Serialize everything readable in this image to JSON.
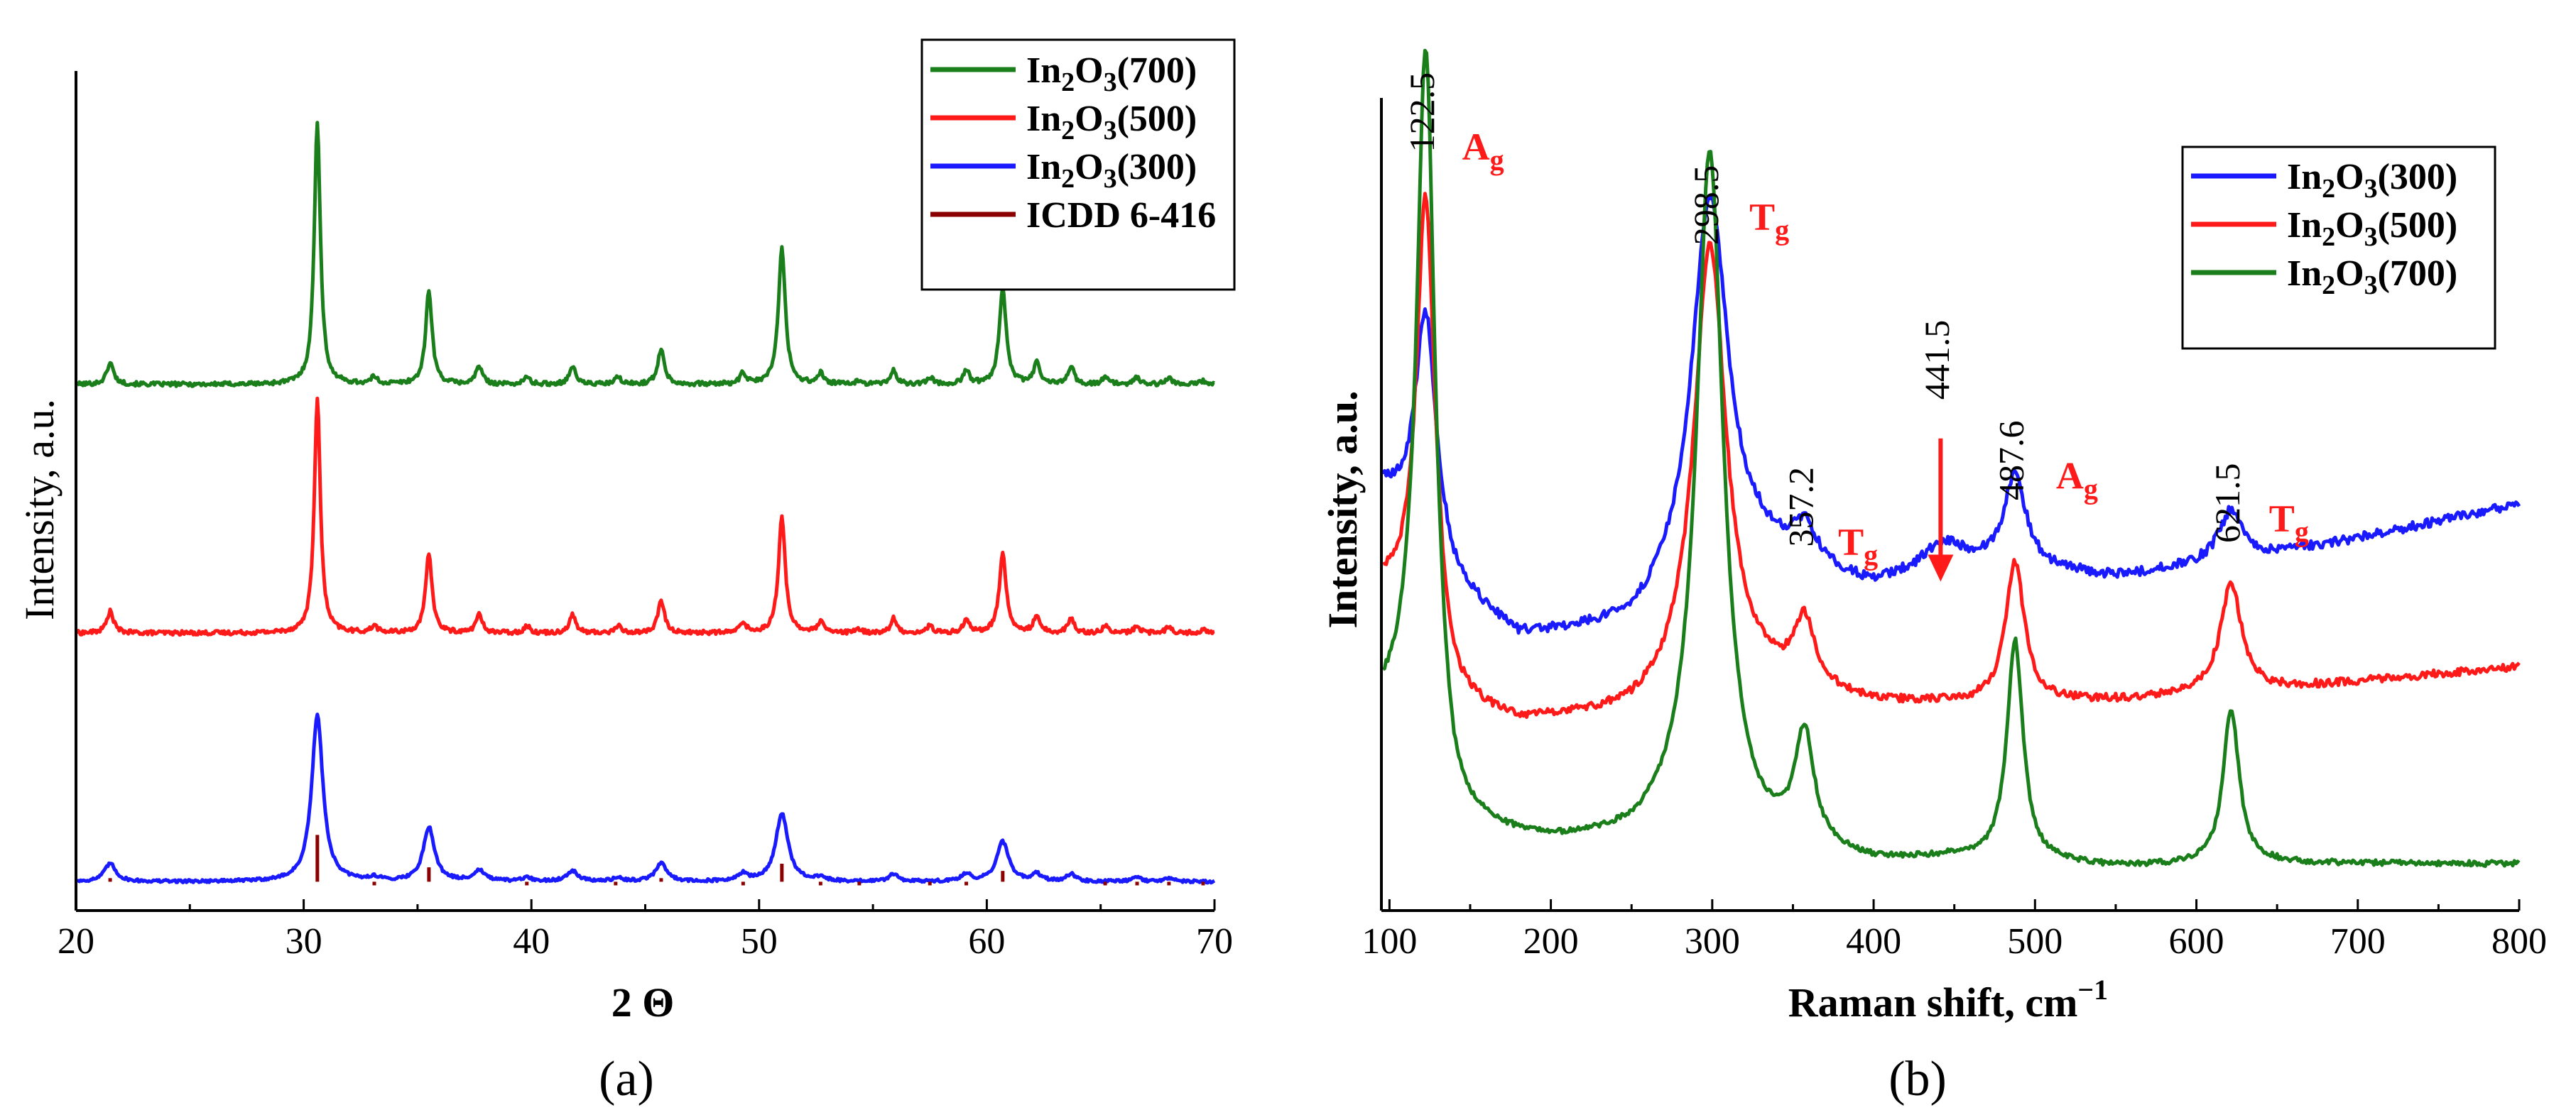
{
  "chart_data": [
    {
      "id": "xrd",
      "type": "line",
      "panel_label": "(a)",
      "xlabel": "2 Θ",
      "ylabel": "Intensity, a.u.",
      "xlim": [
        20,
        70
      ],
      "ylim": [
        -0.08,
        2.25
      ],
      "x_ticks": [
        20,
        30,
        40,
        50,
        60,
        70
      ],
      "x_tick_labels": [
        "20",
        "30",
        "40",
        "50",
        "60",
        "70"
      ],
      "legend": {
        "position": "top-right",
        "entries": [
          {
            "base": "In",
            "sub1": "2",
            "mid": "O",
            "sub2": "3",
            "tail": "(700)",
            "color": "#1a7f1a",
            "kind": "line"
          },
          {
            "base": "In",
            "sub1": "2",
            "mid": "O",
            "sub2": "3",
            "tail": "(500)",
            "color": "#ff1a1a",
            "kind": "line"
          },
          {
            "base": "In",
            "sub1": "2",
            "mid": "O",
            "sub2": "3",
            "tail": "(300)",
            "color": "#1a1aff",
            "kind": "line"
          },
          {
            "base": "ICDD 6-416",
            "sub1": "",
            "mid": "",
            "sub2": "",
            "tail": "",
            "color": "#8b0000",
            "kind": "line"
          }
        ]
      },
      "reference": {
        "name": "ICDD 6-416",
        "color": "#8b0000",
        "positions": [
          21.5,
          30.6,
          33.1,
          35.5,
          37.7,
          39.8,
          41.8,
          43.7,
          45.7,
          49.3,
          51.0,
          52.7,
          54.4,
          55.9,
          57.5,
          59.1,
          60.7,
          62.2,
          63.7,
          65.2,
          66.6,
          68.0,
          69.5
        ],
        "heights": [
          0.09,
          0.21,
          0.07,
          0.12,
          0.08,
          0.07,
          0.08,
          0.07,
          0.09,
          0.07,
          0.13,
          0.07,
          0.07,
          0.08,
          0.07,
          0.07,
          0.11,
          0.08,
          0.08,
          0.07,
          0.07,
          0.07,
          0.07
        ]
      },
      "series": [
        {
          "name": "In2O3(700)",
          "color": "#1a7f1a",
          "offset": 1.38,
          "noise": 0.006,
          "peaks": [
            [
              21.5,
              0.06,
              0.18
            ],
            [
              30.6,
              0.73,
              0.16
            ],
            [
              33.1,
              0.02,
              0.15
            ],
            [
              35.5,
              0.26,
              0.17
            ],
            [
              37.7,
              0.05,
              0.17
            ],
            [
              39.8,
              0.02,
              0.15
            ],
            [
              41.8,
              0.05,
              0.17
            ],
            [
              43.8,
              0.02,
              0.15
            ],
            [
              45.7,
              0.1,
              0.17
            ],
            [
              49.3,
              0.03,
              0.15
            ],
            [
              51.0,
              0.38,
              0.18
            ],
            [
              52.7,
              0.03,
              0.15
            ],
            [
              54.4,
              0.01,
              0.15
            ],
            [
              55.9,
              0.04,
              0.15
            ],
            [
              57.5,
              0.02,
              0.15
            ],
            [
              59.1,
              0.04,
              0.15
            ],
            [
              60.7,
              0.27,
              0.18
            ],
            [
              62.2,
              0.06,
              0.16
            ],
            [
              63.7,
              0.05,
              0.16
            ],
            [
              65.2,
              0.02,
              0.15
            ],
            [
              66.6,
              0.02,
              0.15
            ],
            [
              68.0,
              0.02,
              0.15
            ],
            [
              69.5,
              0.01,
              0.15
            ]
          ]
        },
        {
          "name": "In2O3(500)",
          "color": "#ff1a1a",
          "offset": 0.69,
          "noise": 0.006,
          "peaks": [
            [
              21.5,
              0.06,
              0.18
            ],
            [
              30.6,
              0.65,
              0.16
            ],
            [
              33.1,
              0.02,
              0.15
            ],
            [
              35.5,
              0.22,
              0.17
            ],
            [
              37.7,
              0.05,
              0.17
            ],
            [
              39.8,
              0.02,
              0.15
            ],
            [
              41.8,
              0.05,
              0.17
            ],
            [
              43.8,
              0.02,
              0.15
            ],
            [
              45.7,
              0.09,
              0.17
            ],
            [
              49.3,
              0.03,
              0.15
            ],
            [
              51.0,
              0.32,
              0.18
            ],
            [
              52.7,
              0.03,
              0.15
            ],
            [
              54.4,
              0.01,
              0.15
            ],
            [
              55.9,
              0.04,
              0.15
            ],
            [
              57.5,
              0.02,
              0.15
            ],
            [
              59.1,
              0.04,
              0.15
            ],
            [
              60.7,
              0.22,
              0.18
            ],
            [
              62.2,
              0.05,
              0.16
            ],
            [
              63.7,
              0.04,
              0.16
            ],
            [
              65.2,
              0.02,
              0.15
            ],
            [
              66.6,
              0.02,
              0.15
            ],
            [
              68.0,
              0.02,
              0.15
            ],
            [
              69.5,
              0.01,
              0.15
            ]
          ]
        },
        {
          "name": "In2O3(300)",
          "color": "#1a1aff",
          "offset": 0.0,
          "noise": 0.004,
          "peaks": [
            [
              21.5,
              0.05,
              0.3
            ],
            [
              30.6,
              0.46,
              0.3
            ],
            [
              33.1,
              0.01,
              0.25
            ],
            [
              35.5,
              0.15,
              0.3
            ],
            [
              37.7,
              0.03,
              0.3
            ],
            [
              39.8,
              0.01,
              0.25
            ],
            [
              41.8,
              0.03,
              0.3
            ],
            [
              43.8,
              0.01,
              0.25
            ],
            [
              45.7,
              0.05,
              0.3
            ],
            [
              49.3,
              0.02,
              0.25
            ],
            [
              51.0,
              0.19,
              0.32
            ],
            [
              52.7,
              0.01,
              0.25
            ],
            [
              55.9,
              0.02,
              0.25
            ],
            [
              59.1,
              0.02,
              0.25
            ],
            [
              60.7,
              0.11,
              0.32
            ],
            [
              62.2,
              0.02,
              0.25
            ],
            [
              63.7,
              0.02,
              0.25
            ],
            [
              66.6,
              0.01,
              0.25
            ],
            [
              68.0,
              0.01,
              0.25
            ]
          ]
        }
      ]
    },
    {
      "id": "raman",
      "type": "line",
      "panel_label": "(b)",
      "xlabel": "Raman shift, cm",
      "xlabel_sup": "−1",
      "ylabel": "Intensity, a.u.",
      "xlim": [
        95,
        800
      ],
      "ylim": [
        -0.1,
        2.0
      ],
      "x_ticks": [
        100,
        200,
        300,
        400,
        500,
        600,
        700,
        800
      ],
      "x_tick_labels": [
        "100",
        "200",
        "300",
        "400",
        "500",
        "600",
        "700",
        "800"
      ],
      "legend": {
        "position": "top-right",
        "entries": [
          {
            "base": "In",
            "sub1": "2",
            "mid": "O",
            "sub2": "3",
            "tail": "(300)",
            "color": "#1a1aff",
            "kind": "line"
          },
          {
            "base": "In",
            "sub1": "2",
            "mid": "O",
            "sub2": "3",
            "tail": "(500)",
            "color": "#ff1a1a",
            "kind": "line"
          },
          {
            "base": "In",
            "sub1": "2",
            "mid": "O",
            "sub2": "3",
            "tail": "(700)",
            "color": "#1a7f1a",
            "kind": "line"
          }
        ]
      },
      "peak_labels": [
        {
          "text": "122.5",
          "x": 122.5,
          "y": 1.86
        },
        {
          "text": "298.5",
          "x": 298.5,
          "y": 1.62
        },
        {
          "text": "357.2",
          "x": 357.2,
          "y": 0.84
        },
        {
          "text": "441.5",
          "x": 441.5,
          "y": 1.22
        },
        {
          "text": "487.6",
          "x": 487.6,
          "y": 0.96
        },
        {
          "text": "621.5",
          "x": 621.5,
          "y": 0.85
        }
      ],
      "mode_labels": [
        {
          "main": "A",
          "sub": "g",
          "x": 145,
          "y": 1.84
        },
        {
          "main": "T",
          "sub": "g",
          "x": 323,
          "y": 1.66
        },
        {
          "main": "T",
          "sub": "g",
          "x": 378,
          "y": 0.82
        },
        {
          "main": "A",
          "sub": "g",
          "x": 513,
          "y": 0.99
        },
        {
          "main": "T",
          "sub": "g",
          "x": 645,
          "y": 0.88
        }
      ],
      "arrow": {
        "x": 441.5,
        "y_from": 1.12,
        "y_to": 0.75,
        "color": "#ff1a1a"
      },
      "series": [
        {
          "name": "In2O3(300)",
          "color": "#1a1aff",
          "noise": 0.012,
          "baseline": [
            [
              95,
              0.98
            ],
            [
              110,
              0.9
            ],
            [
              140,
              0.72
            ],
            [
              180,
              0.6
            ],
            [
              250,
              0.62
            ],
            [
              280,
              0.68
            ],
            [
              330,
              0.78
            ],
            [
              400,
              0.73
            ],
            [
              450,
              0.8
            ],
            [
              550,
              0.76
            ],
            [
              650,
              0.82
            ],
            [
              700,
              0.86
            ],
            [
              800,
              0.95
            ]
          ],
          "peaks": [
            [
              122.5,
              0.62,
              8
            ],
            [
              298.5,
              1.02,
              14
            ],
            [
              357.2,
              0.1,
              10
            ],
            [
              441.5,
              0.05,
              12
            ],
            [
              487.6,
              0.24,
              8
            ],
            [
              621.5,
              0.13,
              9
            ]
          ]
        },
        {
          "name": "In2O3(500)",
          "color": "#ff1a1a",
          "noise": 0.01,
          "baseline": [
            [
              95,
              0.72
            ],
            [
              110,
              0.66
            ],
            [
              140,
              0.42
            ],
            [
              180,
              0.38
            ],
            [
              250,
              0.4
            ],
            [
              280,
              0.44
            ],
            [
              330,
              0.47
            ],
            [
              400,
              0.43
            ],
            [
              450,
              0.43
            ],
            [
              550,
              0.44
            ],
            [
              650,
              0.47
            ],
            [
              700,
              0.49
            ],
            [
              800,
              0.53
            ]
          ],
          "peaks": [
            [
              122.5,
              1.18,
              7
            ],
            [
              298.5,
              1.17,
              12
            ],
            [
              357.2,
              0.17,
              8
            ],
            [
              487.6,
              0.36,
              7
            ],
            [
              621.5,
              0.28,
              8
            ]
          ]
        },
        {
          "name": "In2O3(700)",
          "color": "#1a7f1a",
          "noise": 0.007,
          "baseline": [
            [
              95,
              0.4
            ],
            [
              110,
              0.38
            ],
            [
              140,
              0.1
            ],
            [
              200,
              0.07
            ],
            [
              250,
              0.08
            ],
            [
              280,
              0.12
            ],
            [
              330,
              0.06
            ],
            [
              400,
              0.02
            ],
            [
              450,
              0.03
            ],
            [
              500,
              0.02
            ],
            [
              550,
              0.01
            ],
            [
              650,
              0.02
            ],
            [
              800,
              0.02
            ]
          ],
          "peaks": [
            [
              122.5,
              1.86,
              7
            ],
            [
              298.5,
              1.76,
              10
            ],
            [
              357.2,
              0.29,
              7
            ],
            [
              487.6,
              0.57,
              6
            ],
            [
              621.5,
              0.4,
              6
            ]
          ]
        }
      ]
    }
  ]
}
